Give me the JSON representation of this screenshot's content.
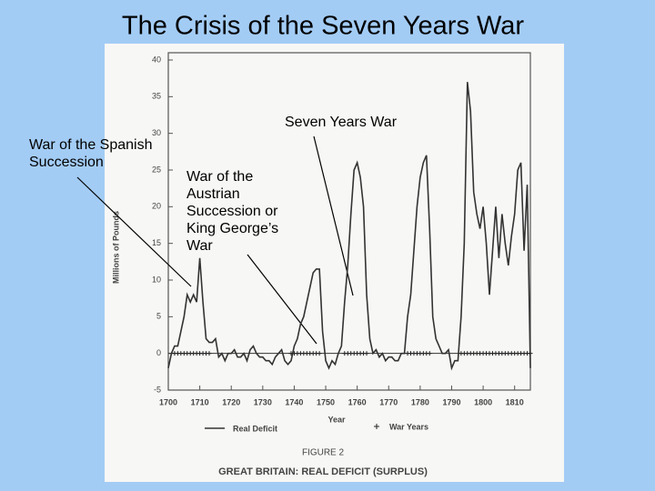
{
  "chart_data": {
    "type": "line",
    "title": "The Crisis of the Seven Years War",
    "figure_label": "FIGURE 2",
    "caption": "GREAT BRITAIN: REAL DEFICIT (SURPLUS)",
    "xlabel": "Year",
    "ylabel": "Millions of Pounds",
    "annotations": [
      "Seven Years War",
      "War of the Spanish Succession",
      "War of the Austrian Succession or King George’s War"
    ],
    "xlim": [
      1700,
      1815
    ],
    "ylim": [
      -5,
      40
    ],
    "xticks": [
      1700,
      1710,
      1720,
      1730,
      1740,
      1750,
      1760,
      1770,
      1780,
      1790,
      1800,
      1810
    ],
    "yticks": [
      -5,
      0,
      5,
      10,
      15,
      20,
      25,
      30,
      35,
      40
    ],
    "x": [
      1700,
      1701,
      1702,
      1703,
      1704,
      1705,
      1706,
      1707,
      1708,
      1709,
      1710,
      1711,
      1712,
      1713,
      1714,
      1715,
      1716,
      1717,
      1718,
      1719,
      1720,
      1721,
      1722,
      1723,
      1724,
      1725,
      1726,
      1727,
      1728,
      1729,
      1730,
      1731,
      1732,
      1733,
      1734,
      1735,
      1736,
      1737,
      1738,
      1739,
      1740,
      1741,
      1742,
      1743,
      1744,
      1745,
      1746,
      1747,
      1748,
      1749,
      1750,
      1751,
      1752,
      1753,
      1754,
      1755,
      1756,
      1757,
      1758,
      1759,
      1760,
      1761,
      1762,
      1763,
      1764,
      1765,
      1766,
      1767,
      1768,
      1769,
      1770,
      1771,
      1772,
      1773,
      1774,
      1775,
      1776,
      1777,
      1778,
      1779,
      1780,
      1781,
      1782,
      1783,
      1784,
      1785,
      1786,
      1787,
      1788,
      1789,
      1790,
      1791,
      1792,
      1793,
      1794,
      1795,
      1796,
      1797,
      1798,
      1799,
      1800,
      1801,
      1802,
      1803,
      1804,
      1805,
      1806,
      1807,
      1808,
      1809,
      1810,
      1811,
      1812,
      1813,
      1814,
      1815
    ],
    "series": [
      {
        "name": "Real Deficit",
        "color": "#333333",
        "values": [
          -2,
          0,
          1,
          1,
          3,
          5,
          8,
          7,
          8,
          7,
          13,
          7,
          2,
          1.5,
          1.5,
          2,
          -0.5,
          0,
          -1,
          0,
          0,
          0.5,
          -0.5,
          -0.5,
          0,
          -1,
          0.5,
          1,
          0,
          -0.5,
          -0.5,
          -1,
          -1,
          -1.5,
          -0.5,
          0,
          0.5,
          -1,
          -1.5,
          -1,
          1,
          2,
          4,
          5,
          7,
          9,
          11,
          11.5,
          11.5,
          3,
          -1,
          -2,
          -1,
          -1.5,
          0,
          1,
          7,
          12,
          19,
          25,
          26,
          24,
          20,
          8,
          2,
          0,
          0.5,
          -0.5,
          0,
          -1,
          -0.5,
          -0.5,
          -1,
          -1,
          0,
          0,
          5,
          8,
          14,
          20,
          24,
          26,
          27,
          17,
          5,
          2,
          1,
          0,
          0,
          0.5,
          -2,
          -1,
          -1,
          5,
          15,
          37,
          33,
          22,
          19,
          17,
          20,
          15,
          8,
          14,
          20,
          13,
          19,
          15,
          12,
          16,
          19,
          25,
          26,
          14,
          23,
          -2
        ]
      },
      {
        "name": "War Years"
      }
    ],
    "war_periods": [
      [
        1702,
        1713
      ],
      [
        1739,
        1748
      ],
      [
        1756,
        1763
      ],
      [
        1776,
        1783
      ],
      [
        1793,
        1815
      ]
    ]
  }
}
